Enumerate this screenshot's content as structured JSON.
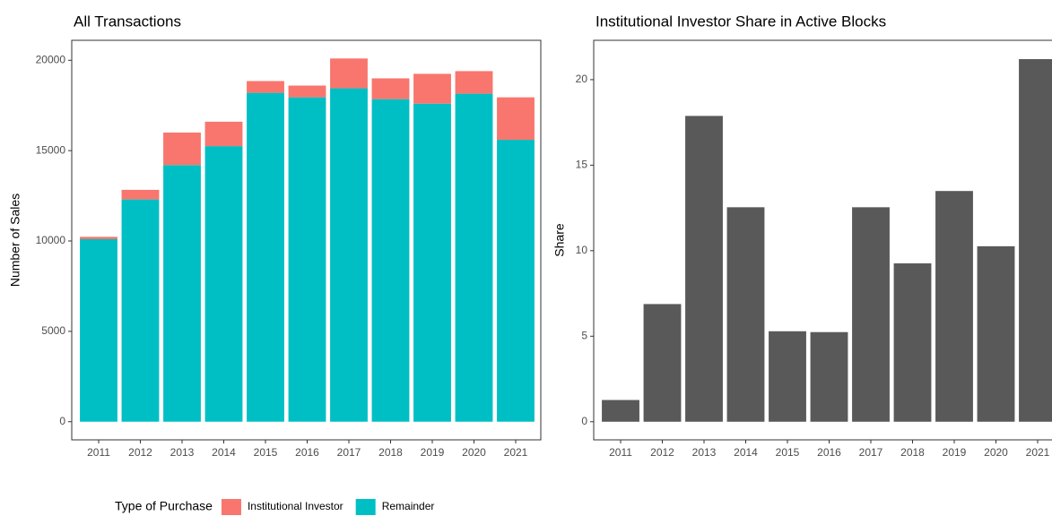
{
  "chart_data": [
    {
      "type": "stacked_bar",
      "title": "All Transactions",
      "y_label": "Number of Sales",
      "legend_title": "Type of Purchase",
      "legend_position": "bottom",
      "categories": [
        "2011",
        "2012",
        "2013",
        "2014",
        "2015",
        "2016",
        "2017",
        "2018",
        "2019",
        "2020",
        "2021"
      ],
      "series": [
        {
          "name": "Institutional Investor",
          "color": "#F8766D",
          "values": [
            130,
            530,
            1800,
            1350,
            650,
            650,
            1650,
            1150,
            1650,
            1250,
            2350
          ]
        },
        {
          "name": "Remainder",
          "color": "#00BFC4",
          "values": [
            10100,
            12300,
            14200,
            15250,
            18200,
            17950,
            18450,
            17850,
            17600,
            18150,
            15600
          ]
        }
      ],
      "ylim": [
        -1005,
        21105
      ],
      "yticks": [
        0,
        5000,
        10000,
        15000,
        20000
      ]
    },
    {
      "type": "bar",
      "title": "Institutional Investor Share in Active Blocks",
      "y_label": "Share",
      "categories": [
        "2011",
        "2012",
        "2013",
        "2014",
        "2015",
        "2016",
        "2017",
        "2018",
        "2019",
        "2020",
        "2021"
      ],
      "values": [
        1.27,
        6.88,
        17.88,
        12.54,
        5.29,
        5.24,
        12.54,
        9.26,
        13.49,
        10.26,
        21.2
      ],
      "color": "#595959",
      "ylim": [
        -1.06,
        22.3
      ],
      "yticks": [
        0,
        5,
        10,
        15,
        20
      ]
    }
  ]
}
